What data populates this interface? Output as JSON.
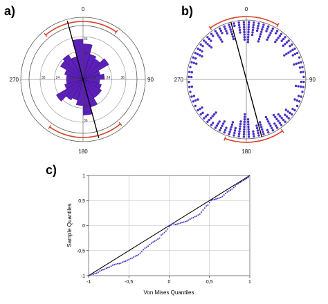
{
  "colors": {
    "bar_fill": "#5c1fb8",
    "bar_stroke": "#2a0a66",
    "point": "#4a2fc7",
    "arc": "#d9412b",
    "line": "#000000",
    "grid": "#bfbfbf"
  },
  "chart_data": [
    {
      "type": "rose",
      "panel_label": "a)",
      "direction_labels": {
        "north": "0",
        "east": "90",
        "south": "180",
        "west": "270"
      },
      "radial_max": 36,
      "ring_labels": [
        "36",
        "24",
        "12"
      ],
      "bin_width_deg": 15,
      "bins_start_deg": [
        0,
        15,
        30,
        45,
        60,
        75,
        90,
        105,
        120,
        135,
        150,
        165,
        180,
        195,
        210,
        225,
        240,
        255,
        270,
        285,
        300,
        315,
        330,
        345
      ],
      "counts": [
        30,
        22,
        20,
        25,
        15,
        18,
        14,
        16,
        18,
        18,
        24,
        30,
        22,
        18,
        20,
        26,
        16,
        14,
        14,
        16,
        22,
        24,
        20,
        34
      ],
      "mean_direction_deg": 165,
      "confidence_arcs": [
        {
          "from_deg": 320,
          "to_deg": 35
        },
        {
          "from_deg": 140,
          "to_deg": 215
        }
      ]
    },
    {
      "type": "circular_dot_plot",
      "panel_label": "b)",
      "direction_labels": {
        "north": "0",
        "east": "90",
        "south": "180",
        "west": "270"
      },
      "bin_width_deg": 5,
      "bins_center_deg": [
        2.5,
        7.5,
        12.5,
        17.5,
        22.5,
        27.5,
        32.5,
        37.5,
        42.5,
        47.5,
        52.5,
        57.5,
        62.5,
        67.5,
        72.5,
        77.5,
        82.5,
        87.5,
        92.5,
        97.5,
        102.5,
        107.5,
        112.5,
        117.5,
        122.5,
        127.5,
        132.5,
        137.5,
        142.5,
        147.5,
        152.5,
        157.5,
        162.5,
        167.5,
        172.5,
        177.5,
        182.5,
        187.5,
        192.5,
        197.5,
        202.5,
        207.5,
        212.5,
        217.5,
        222.5,
        227.5,
        232.5,
        237.5,
        242.5,
        247.5,
        252.5,
        257.5,
        262.5,
        267.5,
        272.5,
        277.5,
        282.5,
        287.5,
        292.5,
        297.5,
        302.5,
        307.5,
        312.5,
        317.5,
        322.5,
        327.5,
        332.5,
        337.5,
        342.5,
        347.5,
        352.5,
        357.5
      ],
      "counts": [
        9,
        6,
        4,
        8,
        3,
        6,
        2,
        5,
        3,
        4,
        2,
        6,
        3,
        1,
        4,
        2,
        2,
        1,
        2,
        4,
        1,
        2,
        3,
        1,
        2,
        4,
        3,
        5,
        6,
        3,
        7,
        2,
        6,
        5,
        3,
        8,
        10,
        7,
        4,
        6,
        3,
        5,
        4,
        2,
        6,
        3,
        2,
        3,
        1,
        3,
        2,
        1,
        2,
        1,
        2,
        2,
        1,
        3,
        2,
        4,
        3,
        2,
        5,
        3,
        2,
        6,
        3,
        4,
        7,
        2,
        5,
        8
      ],
      "mean_direction_deg": 165,
      "confidence_arcs": [
        {
          "from_deg": 325,
          "to_deg": 30
        },
        {
          "from_deg": 145,
          "to_deg": 200
        }
      ]
    },
    {
      "type": "scatter",
      "panel_label": "c)",
      "xlabel": "Von Mises Quantiles",
      "ylabel": "Sample Quantiles",
      "xlim": [
        -1,
        1
      ],
      "ylim": [
        -1,
        1
      ],
      "xticks": [
        "-1",
        "-0,5",
        "0",
        "0,5",
        "1"
      ],
      "yticks": [
        "-1",
        "-0,5",
        "0",
        "0,5",
        "1"
      ],
      "grid": true,
      "reference_line": [
        [
          -1,
          -1
        ],
        [
          1,
          1
        ]
      ],
      "points": [
        [
          -0.98,
          -0.98
        ],
        [
          -0.96,
          -0.97
        ],
        [
          -0.94,
          -0.97
        ],
        [
          -0.92,
          -0.96
        ],
        [
          -0.9,
          -0.95
        ],
        [
          -0.88,
          -0.93
        ],
        [
          -0.86,
          -0.91
        ],
        [
          -0.84,
          -0.89
        ],
        [
          -0.82,
          -0.88
        ],
        [
          -0.8,
          -0.87
        ],
        [
          -0.78,
          -0.85
        ],
        [
          -0.76,
          -0.84
        ],
        [
          -0.74,
          -0.83
        ],
        [
          -0.72,
          -0.81
        ],
        [
          -0.7,
          -0.79
        ],
        [
          -0.68,
          -0.78
        ],
        [
          -0.66,
          -0.77
        ],
        [
          -0.64,
          -0.76
        ],
        [
          -0.62,
          -0.76
        ],
        [
          -0.6,
          -0.75
        ],
        [
          -0.58,
          -0.73
        ],
        [
          -0.56,
          -0.72
        ],
        [
          -0.54,
          -0.71
        ],
        [
          -0.52,
          -0.69
        ],
        [
          -0.5,
          -0.68
        ],
        [
          -0.48,
          -0.66
        ],
        [
          -0.46,
          -0.65
        ],
        [
          -0.44,
          -0.63
        ],
        [
          -0.42,
          -0.61
        ],
        [
          -0.4,
          -0.6
        ],
        [
          -0.38,
          -0.58
        ],
        [
          -0.36,
          -0.55
        ],
        [
          -0.34,
          -0.52
        ],
        [
          -0.32,
          -0.48
        ],
        [
          -0.3,
          -0.45
        ],
        [
          -0.28,
          -0.43
        ],
        [
          -0.26,
          -0.41
        ],
        [
          -0.24,
          -0.38
        ],
        [
          -0.22,
          -0.35
        ],
        [
          -0.2,
          -0.33
        ],
        [
          -0.18,
          -0.31
        ],
        [
          -0.16,
          -0.29
        ],
        [
          -0.14,
          -0.27
        ],
        [
          -0.12,
          -0.25
        ],
        [
          -0.1,
          -0.19
        ],
        [
          -0.08,
          -0.17
        ],
        [
          -0.06,
          -0.14
        ],
        [
          -0.04,
          -0.11
        ],
        [
          -0.02,
          -0.07
        ],
        [
          0.0,
          -0.02
        ],
        [
          0.02,
          0.01
        ],
        [
          0.04,
          0.04
        ],
        [
          0.06,
          0.03
        ],
        [
          0.08,
          0.02
        ],
        [
          0.1,
          0.03
        ],
        [
          0.12,
          0.04
        ],
        [
          0.14,
          0.05
        ],
        [
          0.16,
          0.06
        ],
        [
          0.18,
          0.07
        ],
        [
          0.2,
          0.08
        ],
        [
          0.22,
          0.09
        ],
        [
          0.24,
          0.11
        ],
        [
          0.26,
          0.13
        ],
        [
          0.28,
          0.15
        ],
        [
          0.3,
          0.16
        ],
        [
          0.32,
          0.18
        ],
        [
          0.34,
          0.19
        ],
        [
          0.36,
          0.21
        ],
        [
          0.38,
          0.23
        ],
        [
          0.4,
          0.27
        ],
        [
          0.42,
          0.31
        ],
        [
          0.44,
          0.35
        ],
        [
          0.46,
          0.39
        ],
        [
          0.48,
          0.41
        ],
        [
          0.5,
          0.46
        ],
        [
          0.52,
          0.5
        ],
        [
          0.54,
          0.52
        ],
        [
          0.56,
          0.52
        ],
        [
          0.58,
          0.53
        ],
        [
          0.6,
          0.54
        ],
        [
          0.62,
          0.55
        ],
        [
          0.64,
          0.56
        ],
        [
          0.66,
          0.58
        ],
        [
          0.68,
          0.61
        ],
        [
          0.7,
          0.64
        ],
        [
          0.72,
          0.67
        ],
        [
          0.74,
          0.69
        ],
        [
          0.76,
          0.71
        ],
        [
          0.78,
          0.73
        ],
        [
          0.8,
          0.76
        ],
        [
          0.82,
          0.79
        ],
        [
          0.84,
          0.82
        ],
        [
          0.86,
          0.84
        ],
        [
          0.88,
          0.86
        ],
        [
          0.9,
          0.88
        ],
        [
          0.92,
          0.9
        ],
        [
          0.94,
          0.92
        ],
        [
          0.96,
          0.94
        ],
        [
          0.98,
          0.96
        ]
      ]
    }
  ]
}
